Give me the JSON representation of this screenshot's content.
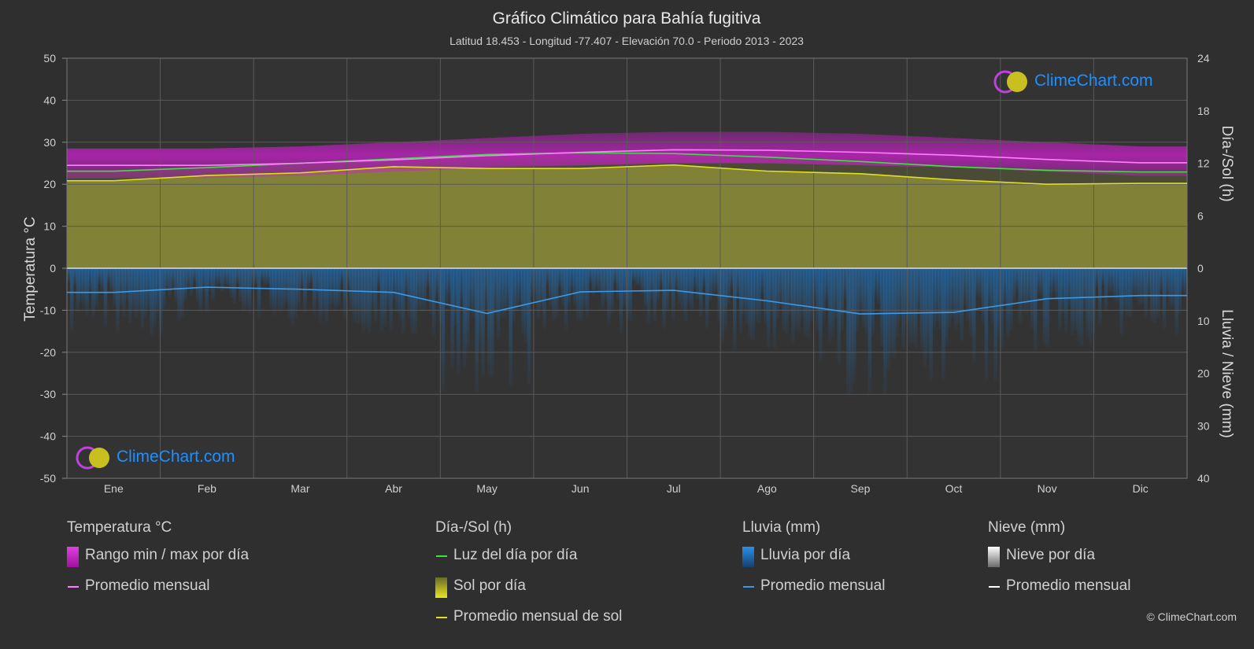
{
  "header": {
    "title": "Gráfico Climático para Bahía fugitiva",
    "subtitle": "Latitud 18.453 - Longitud -77.407 - Elevación 70.0 - Periodo 2013 - 2023"
  },
  "watermark": "ClimeChart.com",
  "copyright": "© ClimeChart.com",
  "colors": {
    "background": "#2f2f2f",
    "temp_range": "#d020d0",
    "temp_avg": "#ff80ff",
    "daylight": "#44dd44",
    "sunshine_fill": "#8f8f3a",
    "sunshine_avg": "#e0e020",
    "rain": "#1e78c8",
    "rain_avg": "#3a9ae8",
    "snow_avg": "#ffffff",
    "brand": "#1e90ff"
  },
  "legend": {
    "temperature": {
      "title": "Temperatura °C",
      "range_label": "Rango min / max por día",
      "avg_label": "Promedio mensual"
    },
    "sun": {
      "title": "Día-/Sol (h)",
      "daylight_label": "Luz del día por día",
      "sun_label": "Sol por día",
      "sun_avg_label": "Promedio mensual de sol"
    },
    "rain": {
      "title": "Lluvia (mm)",
      "rain_label": "Lluvia por día",
      "avg_label": "Promedio mensual"
    },
    "snow": {
      "title": "Nieve (mm)",
      "snow_label": "Nieve por día",
      "avg_label": "Promedio mensual"
    }
  },
  "chart_data": {
    "type": "area",
    "categories": [
      "Ene",
      "Feb",
      "Mar",
      "Abr",
      "May",
      "Jun",
      "Jul",
      "Ago",
      "Sep",
      "Oct",
      "Nov",
      "Dic"
    ],
    "axes": {
      "left": {
        "label": "Temperatura °C",
        "range": [
          -50,
          50
        ],
        "ticks": [
          50,
          40,
          30,
          20,
          10,
          0,
          -10,
          -20,
          -30,
          -40,
          -50
        ]
      },
      "right_top": {
        "label": "Día-/Sol (h)",
        "range": [
          0,
          24
        ],
        "ticks": [
          24,
          18,
          12,
          6,
          0
        ]
      },
      "right_bottom": {
        "label": "Lluvia / Nieve (mm)",
        "range": [
          0,
          40
        ],
        "ticks": [
          0,
          10,
          20,
          30,
          40
        ]
      }
    },
    "grid": true,
    "series": [
      {
        "name": "Rango min / max por día (max)",
        "unit": "°C",
        "values": [
          28.5,
          28.5,
          29.0,
          30.0,
          31.0,
          32.0,
          32.5,
          32.5,
          32.0,
          31.0,
          30.0,
          29.0
        ]
      },
      {
        "name": "Rango min / max por día (min)",
        "unit": "°C",
        "values": [
          21.5,
          21.5,
          22.0,
          23.0,
          24.0,
          24.5,
          25.0,
          25.0,
          24.5,
          24.0,
          23.0,
          22.0
        ]
      },
      {
        "name": "Promedio mensual",
        "unit": "°C",
        "values": [
          24.5,
          24.5,
          25.0,
          25.8,
          26.8,
          27.6,
          28.2,
          28.1,
          27.6,
          26.9,
          25.9,
          25.1
        ]
      },
      {
        "name": "Luz del día por día",
        "unit": "h",
        "values": [
          11.1,
          11.5,
          12.0,
          12.5,
          13.0,
          13.2,
          13.1,
          12.7,
          12.2,
          11.6,
          11.2,
          11.0
        ]
      },
      {
        "name": "Promedio mensual de sol",
        "unit": "h",
        "values": [
          10.0,
          10.6,
          10.9,
          11.6,
          11.4,
          11.4,
          11.8,
          11.1,
          10.8,
          10.1,
          9.6,
          9.7
        ]
      },
      {
        "name": "Lluvia Promedio mensual",
        "unit": "mm",
        "values": [
          4.6,
          3.6,
          4.0,
          4.6,
          8.6,
          4.5,
          4.2,
          6.2,
          8.7,
          8.4,
          5.8,
          5.2
        ]
      },
      {
        "name": "Nieve Promedio mensual",
        "unit": "mm",
        "values": [
          0,
          0,
          0,
          0,
          0,
          0,
          0,
          0,
          0,
          0,
          0,
          0
        ]
      }
    ]
  }
}
